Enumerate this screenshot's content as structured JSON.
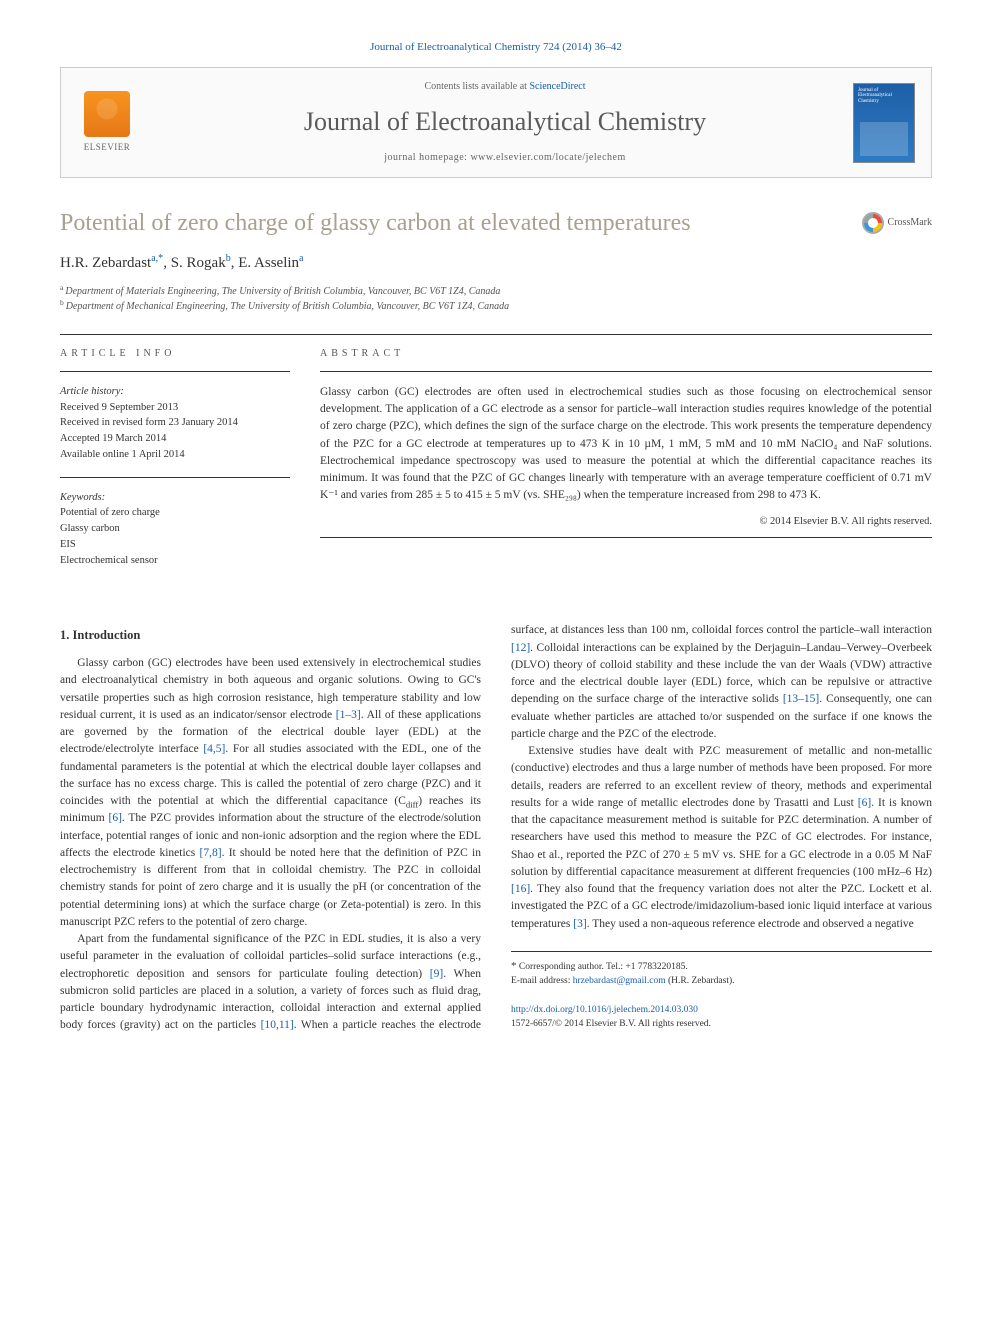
{
  "header": {
    "citation": "Journal of Electroanalytical Chemistry 724 (2014) 36–42",
    "contents_prefix": "Contents lists available at ",
    "contents_link": "ScienceDirect",
    "journal_name": "Journal of Electroanalytical Chemistry",
    "homepage_prefix": "journal homepage: ",
    "homepage_url": "www.elsevier.com/locate/jelechem",
    "publisher": "ELSEVIER"
  },
  "crossmark_label": "CrossMark",
  "article": {
    "title": "Potential of zero charge of glassy carbon at elevated temperatures",
    "authors_html": "H.R. Zebardast",
    "author1": "H.R. Zebardast",
    "author1_sup": "a,*",
    "author2": "S. Rogak",
    "author2_sup": "b",
    "author3": "E. Asselin",
    "author3_sup": "a",
    "affiliations": [
      {
        "sup": "a",
        "text": "Department of Materials Engineering, The University of British Columbia, Vancouver, BC V6T 1Z4, Canada"
      },
      {
        "sup": "b",
        "text": "Department of Mechanical Engineering, The University of British Columbia, Vancouver, BC V6T 1Z4, Canada"
      }
    ]
  },
  "info": {
    "section_label": "ARTICLE INFO",
    "history_label": "Article history:",
    "history": [
      "Received 9 September 2013",
      "Received in revised form 23 January 2014",
      "Accepted 19 March 2014",
      "Available online 1 April 2014"
    ],
    "keywords_label": "Keywords:",
    "keywords": [
      "Potential of zero charge",
      "Glassy carbon",
      "EIS",
      "Electrochemical sensor"
    ]
  },
  "abstract": {
    "section_label": "ABSTRACT",
    "text": "Glassy carbon (GC) electrodes are often used in electrochemical studies such as those focusing on electrochemical sensor development. The application of a GC electrode as a sensor for particle–wall interaction studies requires knowledge of the potential of zero charge (PZC), which defines the sign of the surface charge on the electrode. This work presents the temperature dependency of the PZC for a GC electrode at temperatures up to 473 K in 10 µM, 1 mM, 5 mM and 10 mM NaClO₄ and NaF solutions. Electrochemical impedance spectroscopy was used to measure the potential at which the differential capacitance reaches its minimum. It was found that the PZC of GC changes linearly with temperature with an average temperature coefficient of 0.71 mV K⁻¹ and varies from 285 ± 5 to 415 ± 5 mV (vs. SHE₂₉₈) when the temperature increased from 298 to 473 K.",
    "copyright": "© 2014 Elsevier B.V. All rights reserved."
  },
  "body": {
    "section1_title": "1. Introduction",
    "p1a": "Glassy carbon (GC) electrodes have been used extensively in electrochemical studies and electroanalytical chemistry in both aqueous and organic solutions. Owing to GC's versatile properties such as high corrosion resistance, high temperature stability and low residual current, it is used as an indicator/sensor electrode ",
    "r1": "[1–3]",
    "p1b": ". All of these applications are governed by the formation of the electrical double layer (EDL) at the electrode/electrolyte interface ",
    "r2": "[4,5]",
    "p1c": ". For all studies associated with the EDL, one of the fundamental parameters is the potential at which the electrical double layer collapses and the surface has no excess charge. This is called the potential of zero charge (PZC) and it coincides with the potential at which the differential capacitance (C",
    "p1c_sub": "diff",
    "p1d": ") reaches its minimum ",
    "r3": "[6]",
    "p1e": ". The PZC provides information about the structure of the electrode/solution interface, potential ranges of ionic and non-ionic adsorption and the region where the EDL affects the electrode kinetics ",
    "r4": "[7,8]",
    "p1f": ". It should be noted here that the definition of PZC in electrochemistry is different from that in colloidal chemistry. The PZC in colloidal chemistry stands for point of zero charge and it is usually the pH (or concentration of the potential determining ions) at which the surface charge (or Zeta-potential) is zero. In this manuscript PZC refers to the potential of zero charge.",
    "p2a": "Apart from the fundamental significance of the PZC in EDL studies, it is also a very useful parameter in the evaluation of colloidal particles–solid surface interactions (e.g., electrophoretic deposition ",
    "p2b": "and sensors for particulate fouling detection) ",
    "r5": "[9]",
    "p2c": ". When submicron solid particles are placed in a solution, a variety of forces such as fluid drag, particle boundary hydrodynamic interaction, colloidal interaction and external applied body forces (gravity) act on the particles ",
    "r6": "[10,11]",
    "p2d": ". When a particle reaches the electrode surface, at distances less than 100 nm, colloidal forces control the particle–wall interaction ",
    "r7": "[12]",
    "p2e": ". Colloidal interactions can be explained by the Derjaguin–Landau–Verwey–Overbeek (DLVO) theory of colloid stability and these include the van der Waals (VDW) attractive force and the electrical double layer (EDL) force, which can be repulsive or attractive depending on the surface charge of the interactive solids ",
    "r8": "[13–15]",
    "p2f": ". Consequently, one can evaluate whether particles are attached to/or suspended on the surface if one knows the particle charge and the PZC of the electrode.",
    "p3a": "Extensive studies have dealt with PZC measurement of metallic and non-metallic (conductive) electrodes and thus a large number of methods have been proposed. For more details, readers are referred to an excellent review of theory, methods and experimental results for a wide range of metallic electrodes done by Trasatti and Lust ",
    "r9": "[6]",
    "p3b": ". It is known that the capacitance measurement method is suitable for PZC determination. A number of researchers have used this method to measure the PZC of GC electrodes. For instance, Shao et al., reported the PZC of 270 ± 5 mV vs. SHE for a GC electrode in a 0.05 M NaF solution by differential capacitance measurement at different frequencies (100 mHz–6 Hz) ",
    "r10": "[16]",
    "p3c": ". They also found that the frequency variation does not alter the PZC. Lockett et al. investigated the PZC of a GC electrode/imidazolium-based ionic liquid interface at various temperatures ",
    "r11": "[3]",
    "p3d": ". They used a non-aqueous reference electrode and observed a negative"
  },
  "footnote": {
    "corr": "Corresponding author. Tel.: +1 7783220185.",
    "email_label": "E-mail address:",
    "email": "hrzebardast@gmail.com",
    "email_name": "(H.R. Zebardast)."
  },
  "doi": {
    "url": "http://dx.doi.org/10.1016/j.jelechem.2014.03.030",
    "issn_line": "1572-6657/© 2014 Elsevier B.V. All rights reserved."
  },
  "colors": {
    "link": "#1a5da8",
    "title": "#a8a090",
    "text": "#333333",
    "elsevier_orange": "#f7941e",
    "cover_blue": "#1e5fa6"
  }
}
